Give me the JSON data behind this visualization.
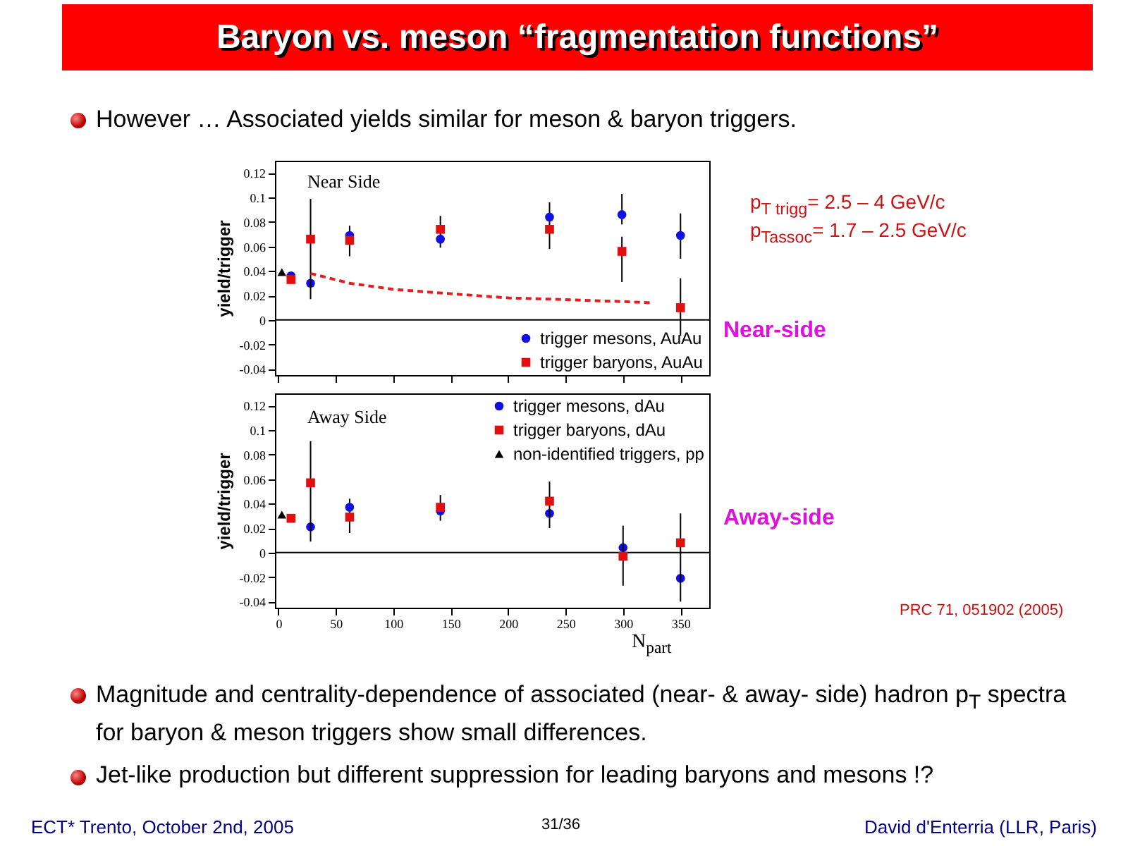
{
  "chart_data": [
    {
      "type": "scatter",
      "title": "Baryon vs. meson “fragmentation functions”",
      "subtitle": "However … Associated yields similar for meson & baryon triggers.",
      "ylabel": "yield/trigger",
      "xlim": [
        -3,
        375
      ],
      "ylim": [
        -0.045,
        0.13
      ],
      "xticks": [
        0,
        50,
        100,
        150,
        200,
        250,
        300,
        350
      ],
      "yticks": [
        -0.04,
        -0.02,
        0,
        0.02,
        0.04,
        0.06,
        0.08,
        0.1,
        0.12
      ],
      "tick_labels": "y",
      "legend": "bottom right",
      "ref_lines": [
        {
          "axis": "y",
          "value": 0
        }
      ],
      "annotations": [
        "Near Side",
        "p$_{T trigg}$= 2.5 – 4 GeV/c",
        "p$_{Tassoc}$= 1.7 – 2.5 GeV/c",
        "Near-side"
      ],
      "series": [
        {
          "name": "trigger mesons, AuAu",
          "color": "#1010e0",
          "marker": "circle",
          "x": [
            28,
            62,
            141,
            236,
            299,
            350
          ],
          "values": [
            0.03,
            0.069,
            0.066,
            0.084,
            0.086,
            0.069
          ],
          "errors": [
            null,
            [
              0.052,
              0.077
            ],
            [
              0.059,
              0.085
            ],
            [
              0.058,
              0.096
            ],
            [
              0.078,
              0.103
            ],
            [
              0.05,
              0.087
            ]
          ]
        },
        {
          "name": "trigger baryons, AuAu",
          "color": "#e01010",
          "marker": "square",
          "x": [
            28,
            62,
            141,
            236,
            299,
            350
          ],
          "values": [
            0.066,
            0.065,
            0.074,
            0.074,
            0.056,
            0.01
          ],
          "errors": [
            [
              0.017,
              0.099
            ],
            null,
            null,
            null,
            [
              0.031,
              0.068
            ],
            [
              -0.013,
              0.034
            ]
          ]
        },
        {
          "color": "#1010e0",
          "marker": "circle",
          "x": [
            11
          ],
          "values": [
            0.036
          ]
        },
        {
          "color": "#e01010",
          "marker": "square",
          "x": [
            11
          ],
          "values": [
            0.033
          ]
        },
        {
          "color": "#000000",
          "marker": "triangle",
          "x": [
            3
          ],
          "values": [
            0.039
          ]
        },
        {
          "type": "line",
          "color": "#e02020",
          "line_style": "dashed",
          "x": [
            28,
            62,
            100,
            141,
            200,
            236,
            300,
            325
          ],
          "values": [
            0.038,
            0.03,
            0.025,
            0.022,
            0.018,
            0.017,
            0.015,
            0.014
          ]
        }
      ]
    },
    {
      "type": "scatter",
      "xlabel": "N$_{part}$",
      "ylabel": "yield/trigger",
      "xlim": [
        -3,
        375
      ],
      "ylim": [
        -0.045,
        0.13
      ],
      "xticks": [
        0,
        50,
        100,
        150,
        200,
        250,
        300,
        350
      ],
      "yticks": [
        -0.04,
        -0.02,
        0,
        0.02,
        0.04,
        0.06,
        0.08,
        0.1,
        0.12
      ],
      "legend": "top right",
      "ref_lines": [
        {
          "axis": "y",
          "value": 0
        }
      ],
      "annotations": [
        "Away Side",
        "Away-side",
        "PRC 71, 051902 (2005)",
        "Magnitude and centrality-dependence of associated (near- & away- side) hadron p$_{T}$ spectra for baryon & meson triggers show small differences.",
        "Jet-like production but different suppression for leading baryons and mesons !?",
        "ECT* Trento, October 2nd, 2005",
        "31/36",
        "David d'Enterria (LLR, Paris)"
      ],
      "series": [
        {
          "color": "#1010e0",
          "marker": "circle",
          "x": [
            28,
            62,
            141,
            236,
            300,
            350
          ],
          "values": [
            0.021,
            0.037,
            0.034,
            0.032,
            0.004,
            -0.021
          ],
          "errors": [
            null,
            [
              0.016,
              0.044
            ],
            [
              0.026,
              0.047
            ],
            null,
            null,
            null
          ]
        },
        {
          "color": "#e01010",
          "marker": "square",
          "x": [
            28,
            62,
            141,
            236,
            300,
            350
          ],
          "values": [
            0.057,
            0.029,
            0.037,
            0.042,
            -0.003,
            0.008
          ],
          "errors": [
            [
              0.009,
              0.091
            ],
            null,
            null,
            [
              0.02,
              0.058
            ],
            [
              -0.027,
              0.022
            ],
            [
              -0.04,
              0.032
            ]
          ]
        },
        {
          "name": "trigger mesons, dAu",
          "color": "#1010e0",
          "marker": "circle"
        },
        {
          "name": "trigger baryons, dAu",
          "color": "#e01010",
          "marker": "square",
          "x": [
            11
          ],
          "values": [
            0.028
          ]
        },
        {
          "name": "non-identified triggers, pp",
          "color": "#000000",
          "marker": "triangle",
          "x": [
            3
          ],
          "values": [
            0.031
          ]
        }
      ]
    }
  ]
}
